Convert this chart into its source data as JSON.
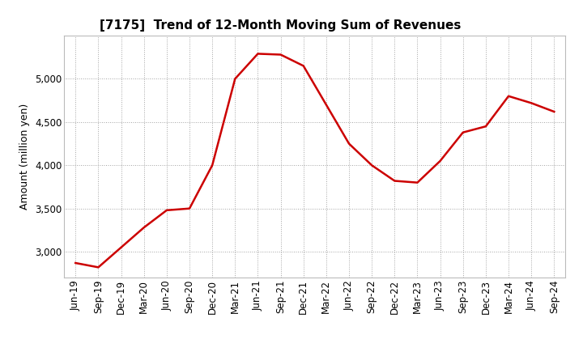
{
  "title": "[7175]  Trend of 12-Month Moving Sum of Revenues",
  "ylabel": "Amount (million yen)",
  "line_color": "#cc0000",
  "bg_color": "#ffffff",
  "grid_color": "#999999",
  "x_labels": [
    "Jun-19",
    "Sep-19",
    "Dec-19",
    "Mar-20",
    "Jun-20",
    "Sep-20",
    "Dec-20",
    "Mar-21",
    "Jun-21",
    "Sep-21",
    "Dec-21",
    "Mar-22",
    "Jun-22",
    "Sep-22",
    "Dec-22",
    "Mar-23",
    "Jun-23",
    "Sep-23",
    "Dec-23",
    "Mar-24",
    "Jun-24",
    "Sep-24"
  ],
  "y_values": [
    2870,
    2820,
    3050,
    3280,
    3480,
    3500,
    4000,
    5000,
    5290,
    5280,
    5150,
    4700,
    4250,
    4000,
    3820,
    3800,
    4050,
    4380,
    4450,
    4800,
    4720,
    4620
  ],
  "ylim": [
    2700,
    5500
  ],
  "yticks": [
    3000,
    3500,
    4000,
    4500,
    5000
  ],
  "title_fontsize": 11,
  "label_fontsize": 9,
  "tick_fontsize": 8.5
}
